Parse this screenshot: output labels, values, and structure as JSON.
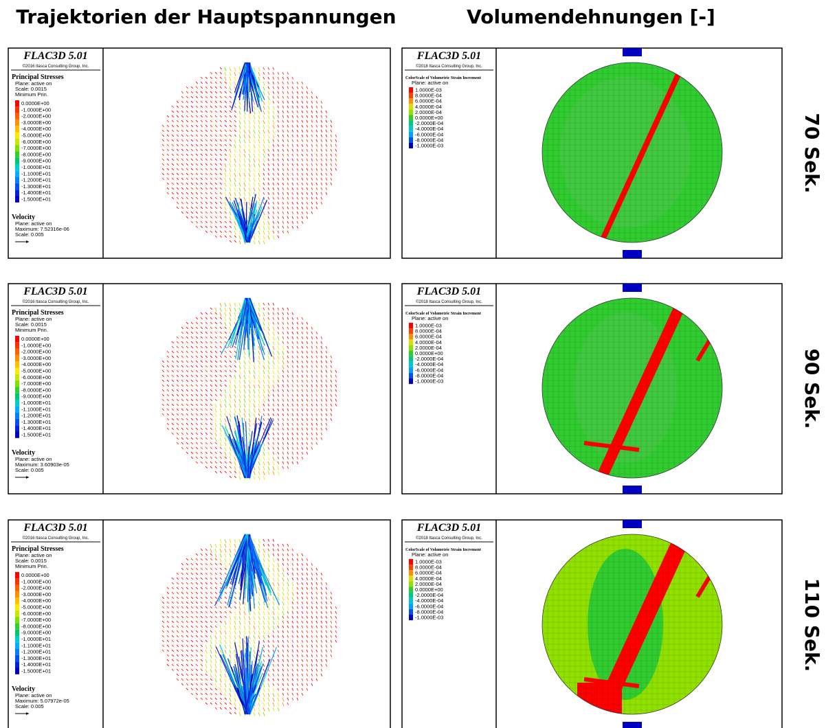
{
  "headers": {
    "left": "Trajektorien der Hauptspannungen",
    "right": "Volumendehnungen [-]"
  },
  "stress_legend": {
    "software": "FLAC3D 5.01",
    "copyright": "©2016 Itasca Consulting Group, Inc.",
    "title": "Principal Stresses",
    "plane": "Plane: active on",
    "scale": "Scale: 0.0015",
    "contour": "Minimum Prin.",
    "entries": [
      {
        "label": "0.0000E+00",
        "color": "#ff0000"
      },
      {
        "label": "-1.0000E+00",
        "color": "#ff3000"
      },
      {
        "label": "-2.0000E+00",
        "color": "#ff6000"
      },
      {
        "label": "-3.0000E+00",
        "color": "#ff9000"
      },
      {
        "label": "-4.0000E+00",
        "color": "#ffc000"
      },
      {
        "label": "-5.0000E+00",
        "color": "#ffe800"
      },
      {
        "label": "-6.0000E+00",
        "color": "#c8e800"
      },
      {
        "label": "-7.0000E+00",
        "color": "#80e000"
      },
      {
        "label": "-8.0000E+00",
        "color": "#30d030"
      },
      {
        "label": "-9.0000E+00",
        "color": "#00c870"
      },
      {
        "label": "-1.0000E+01",
        "color": "#00d0c8"
      },
      {
        "label": "-1.1000E+01",
        "color": "#00b0ff"
      },
      {
        "label": "-1.2000E+01",
        "color": "#0080ff"
      },
      {
        "label": "-1.3000E+01",
        "color": "#0050f0"
      },
      {
        "label": "-1.4000E+01",
        "color": "#0020e0"
      },
      {
        "label": "-1.5000E+01",
        "color": "#0000c0"
      }
    ],
    "velocity": {
      "title": "Velocity",
      "plane": "Plane: active on",
      "scale": "Scale: 0.005"
    }
  },
  "strain_legend": {
    "software": "FLAC3D 5.01",
    "copyright": "©2018 Itasca Consulting Group, Inc.",
    "title": "ColorScale of Volumetric Strain Increment",
    "plane": "Plane: active on",
    "entries": [
      {
        "label": "1.0000E-03",
        "color": "#ff0000"
      },
      {
        "label": "8.0000E-04",
        "color": "#ff4000"
      },
      {
        "label": "6.0000E-04",
        "color": "#ff9000"
      },
      {
        "label": "4.0000E-04",
        "color": "#d8e000"
      },
      {
        "label": "2.0000E-04",
        "color": "#90e000"
      },
      {
        "label": "0.0000E+00",
        "color": "#30cc30"
      },
      {
        "label": "-2.0000E-04",
        "color": "#00c880"
      },
      {
        "label": "-4.0000E-04",
        "color": "#00c8d8"
      },
      {
        "label": "-6.0000E-04",
        "color": "#00a0ff"
      },
      {
        "label": "-8.0000E-04",
        "color": "#0050f0"
      },
      {
        "label": "-1.0000E-03",
        "color": "#0000c0"
      }
    ]
  },
  "rows": [
    {
      "label": "70 Sek.",
      "velocity_maximum": "Maximum: 7.52316e-06"
    },
    {
      "label": "90 Sek.",
      "velocity_maximum": "Maximum: 3.60903e-05"
    },
    {
      "label": "110 Sek.",
      "velocity_maximum": "Maximum: 5.07972e-05"
    }
  ]
}
